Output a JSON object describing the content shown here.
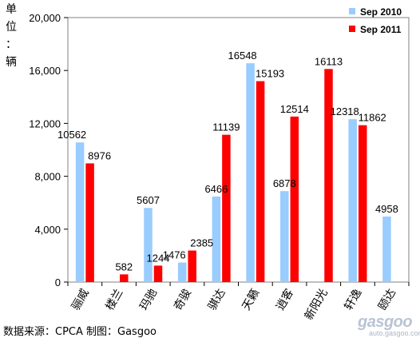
{
  "chart_data": {
    "type": "bar",
    "ylabel": "单位：辆",
    "ylim": [
      0,
      20000
    ],
    "yticks": [
      "0",
      "4,000",
      "8,000",
      "12,000",
      "16,000",
      "20,000"
    ],
    "ytick_values": [
      0,
      4000,
      8000,
      12000,
      16000,
      20000
    ],
    "grid": false,
    "legend_position": "top-right",
    "categories": [
      "骊威",
      "楼兰",
      "玛驰",
      "奇骏",
      "骐达",
      "天籁",
      "逍客",
      "新阳光",
      "轩逸",
      "颐达"
    ],
    "series": [
      {
        "name": "Sep 2010",
        "color": "#99ccff",
        "values": [
          10562,
          null,
          5607,
          1476,
          6466,
          16548,
          6878,
          null,
          12318,
          4958
        ],
        "labels": [
          "10562",
          "",
          "5607",
          "1476",
          "6466",
          "16548",
          "6878",
          "",
          "12318",
          "4958"
        ]
      },
      {
        "name": "Sep 2011",
        "color": "#ff0000",
        "values": [
          8976,
          582,
          1244,
          2385,
          11139,
          15193,
          12514,
          16113,
          11862,
          null
        ],
        "labels": [
          "8976",
          "582",
          "1244",
          "2385",
          "11139",
          "15193",
          "12514",
          "16113",
          "11862",
          ""
        ]
      }
    ]
  },
  "footer": {
    "source": "数据来源：CPCA 制图：Gasgoo",
    "watermark": "gasgoo",
    "watermark_sub": "auto.gasgoo.com"
  }
}
